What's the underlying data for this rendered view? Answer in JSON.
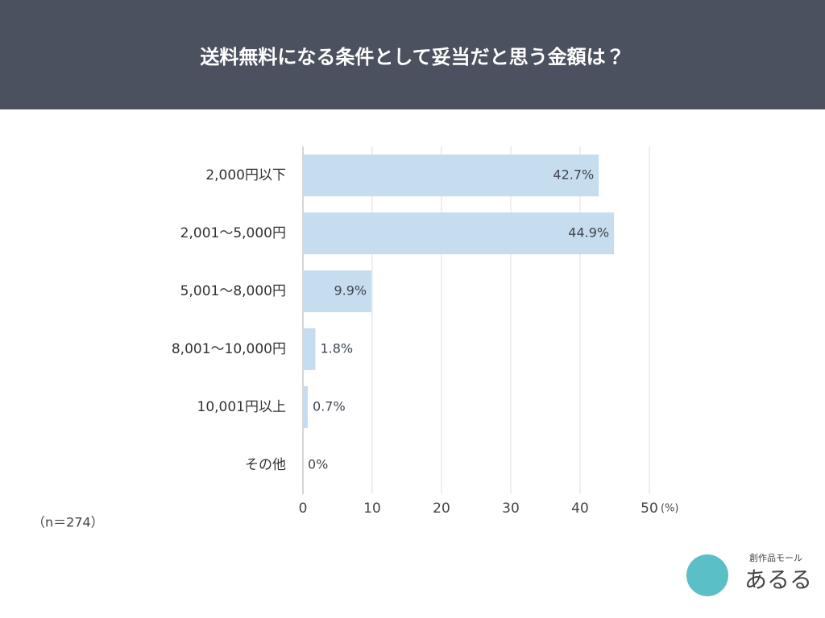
{
  "chart_data": {
    "type": "barh",
    "title": "送料無料になる条件として妥当だと思う金額は？",
    "categories": [
      "2,000円以下",
      "2,001～5,000円",
      "5,001～8,000円",
      "8,001～10,000円",
      "10,001円以上",
      "その他"
    ],
    "values": [
      42.7,
      44.9,
      9.9,
      1.8,
      0.7,
      0
    ],
    "value_labels": [
      "42.7%",
      "44.9%",
      "9.9%",
      "1.8%",
      "0.7%",
      "0%"
    ],
    "color": "#c6ddef",
    "xlim": [
      0,
      50
    ],
    "xticks": [
      0,
      10,
      20,
      30,
      40,
      50
    ],
    "xlabel": "(%)",
    "grid": true,
    "note": "（n＝274）"
  },
  "logo": {
    "tagline": "創作品モール",
    "name": "あるる"
  }
}
